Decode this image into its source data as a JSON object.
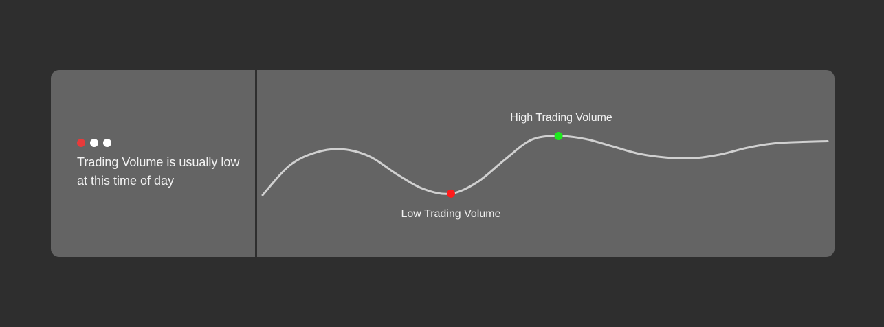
{
  "info": {
    "indicator_count": 3,
    "active_indicator": 0,
    "message": "Trading Volume is usually low at this time of day"
  },
  "colors": {
    "background": "#2e2e2e",
    "card": "#646464",
    "curve": "#d0d0d0",
    "low_marker": "#ff1a1a",
    "high_marker": "#1ee81e",
    "indicator_active": "#e83a3a",
    "indicator_inactive": "#ffffff"
  },
  "chart_data": {
    "type": "line",
    "series": [
      {
        "values": [
          0.0,
          0.4,
          0.58,
          0.62,
          0.52,
          0.28,
          0.08,
          0.02,
          0.18,
          0.48,
          0.75,
          0.8,
          0.76,
          0.66,
          0.56,
          0.51,
          0.5,
          0.55,
          0.64,
          0.7,
          0.72,
          0.73
        ]
      }
    ],
    "low_point": {
      "index": 7,
      "label": "Low Trading Volume"
    },
    "high_point": {
      "index": 11,
      "label": "High Trading Volume"
    }
  }
}
